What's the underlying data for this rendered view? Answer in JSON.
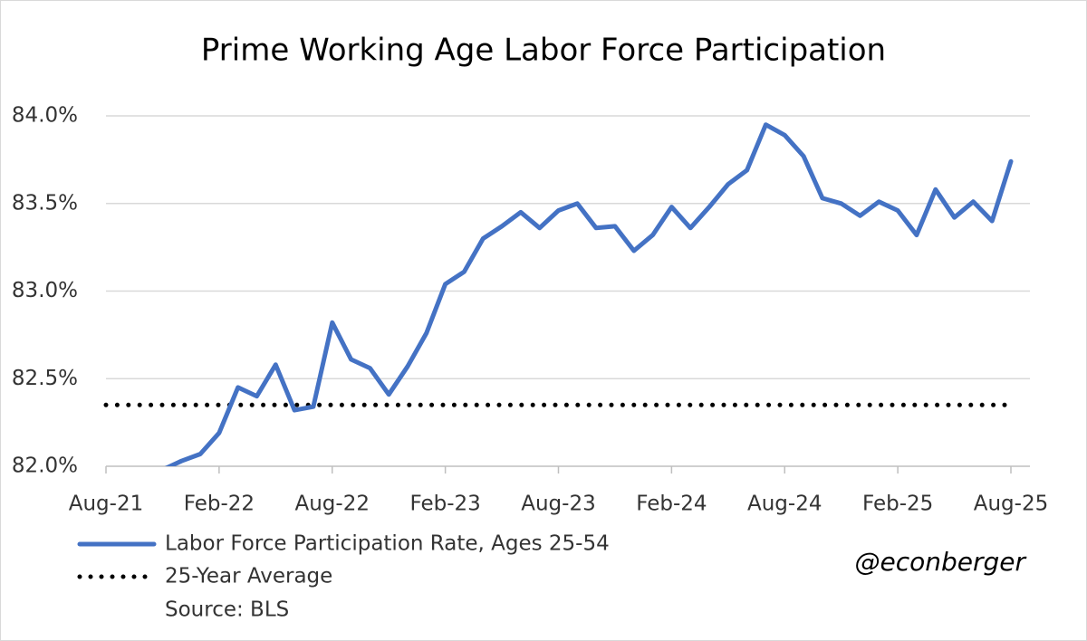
{
  "chart_data": {
    "type": "line",
    "title": "Prime Working Age Labor Force Participation",
    "categories": [
      "Aug-21",
      null,
      null,
      null,
      null,
      null,
      "Feb-22",
      null,
      null,
      null,
      null,
      null,
      "Aug-22",
      null,
      null,
      null,
      null,
      null,
      "Feb-23",
      null,
      null,
      null,
      null,
      null,
      "Aug-23",
      null,
      null,
      null,
      null,
      null,
      "Feb-24",
      null,
      null,
      null,
      null,
      null,
      "Aug-24",
      null,
      null,
      null,
      null,
      null,
      "Feb-25",
      null,
      null,
      null,
      null,
      null,
      "Aug-25"
    ],
    "series": [
      {
        "name": "Labor Force Participation Rate, Ages 25-54",
        "color": "#4472c4",
        "style": "solid",
        "values": [
          null,
          null,
          null,
          81.98,
          82.03,
          82.07,
          82.19,
          82.45,
          82.4,
          82.58,
          82.32,
          82.34,
          82.82,
          82.61,
          82.56,
          82.41,
          82.57,
          82.76,
          83.04,
          83.11,
          83.3,
          83.37,
          83.45,
          83.36,
          83.46,
          83.5,
          83.36,
          83.37,
          83.23,
          83.32,
          83.48,
          83.36,
          83.48,
          83.61,
          83.69,
          83.95,
          83.89,
          83.77,
          83.53,
          83.5,
          83.43,
          83.51,
          83.46,
          83.32,
          83.58,
          83.42,
          83.51,
          83.4,
          83.74
        ]
      },
      {
        "name": "25-Year Average",
        "color": "#000000",
        "style": "dotted",
        "values": [
          82.35,
          82.35,
          82.35,
          82.35,
          82.35,
          82.35,
          82.35,
          82.35,
          82.35,
          82.35,
          82.35,
          82.35,
          82.35,
          82.35,
          82.35,
          82.35,
          82.35,
          82.35,
          82.35,
          82.35,
          82.35,
          82.35,
          82.35,
          82.35,
          82.35,
          82.35,
          82.35,
          82.35,
          82.35,
          82.35,
          82.35,
          82.35,
          82.35,
          82.35,
          82.35,
          82.35,
          82.35,
          82.35,
          82.35,
          82.35,
          82.35,
          82.35,
          82.35,
          82.35,
          82.35,
          82.35,
          82.35,
          82.35,
          82.35
        ]
      }
    ],
    "ylim": [
      82,
      84
    ],
    "yticks": [
      {
        "value": 82,
        "label": "82.0%"
      },
      {
        "value": 82.5,
        "label": "82.5%"
      },
      {
        "value": 83,
        "label": "83.0%"
      },
      {
        "value": 83.5,
        "label": "83.5%"
      },
      {
        "value": 84,
        "label": "84.0%"
      }
    ],
    "grid": true,
    "annotations": [
      "Source: BLS",
      "@econberger"
    ]
  }
}
